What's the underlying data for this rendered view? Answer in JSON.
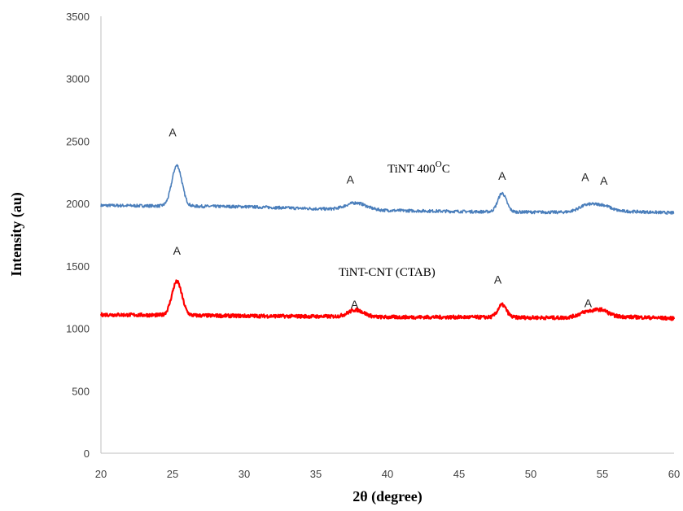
{
  "chart_data": {
    "type": "line",
    "title": "",
    "xlabel": "2θ (degree)",
    "ylabel": "Intensity  (au)",
    "xlim": [
      20,
      60
    ],
    "ylim": [
      0,
      3500
    ],
    "xticks": [
      "20",
      "25",
      "30",
      "35",
      "40",
      "45",
      "50",
      "55",
      "60"
    ],
    "yticks": [
      "0",
      "500",
      "1000",
      "1500",
      "2000",
      "2500",
      "3000",
      "3500"
    ],
    "grid": false,
    "legend": "none",
    "series": [
      {
        "name": "TiNT 400",
        "name_superscript": "O",
        "name_suffix": "C",
        "color": "#4a7ebb",
        "baseline": [
          [
            20,
            1985
          ],
          [
            30,
            1975
          ],
          [
            36,
            1955
          ],
          [
            40,
            1945
          ],
          [
            46,
            1935
          ],
          [
            52,
            1930
          ],
          [
            56,
            1940
          ],
          [
            60,
            1925
          ]
        ],
        "peaks": [
          {
            "x": 25.3,
            "height": 325,
            "width": 0.35
          },
          {
            "x": 37.8,
            "height": 55,
            "width": 0.7
          },
          {
            "x": 48.0,
            "height": 150,
            "width": 0.3
          },
          {
            "x": 54.0,
            "height": 55,
            "width": 0.6
          },
          {
            "x": 55.1,
            "height": 40,
            "width": 0.5
          }
        ],
        "noise": 12
      },
      {
        "name": "TiNT-CNT (CTAB)",
        "color": "#ff0000",
        "baseline": [
          [
            20,
            1110
          ],
          [
            30,
            1100
          ],
          [
            36,
            1095
          ],
          [
            40,
            1090
          ],
          [
            46,
            1090
          ],
          [
            52,
            1085
          ],
          [
            56,
            1095
          ],
          [
            60,
            1080
          ]
        ],
        "peaks": [
          {
            "x": 25.3,
            "height": 270,
            "width": 0.35
          },
          {
            "x": 37.8,
            "height": 55,
            "width": 0.55
          },
          {
            "x": 48.0,
            "height": 100,
            "width": 0.3
          },
          {
            "x": 54.0,
            "height": 45,
            "width": 0.6
          },
          {
            "x": 55.0,
            "height": 45,
            "width": 0.45
          }
        ],
        "noise": 14
      }
    ],
    "annotations": [
      {
        "text": "A",
        "x": 25.0,
        "y": 2540
      },
      {
        "text": "A",
        "x": 37.4,
        "y": 2160
      },
      {
        "text": "A",
        "x": 48.0,
        "y": 2190
      },
      {
        "text": "A",
        "x": 53.8,
        "y": 2180
      },
      {
        "text": "A",
        "x": 55.1,
        "y": 2150
      },
      {
        "text": "A",
        "x": 25.3,
        "y": 1590
      },
      {
        "text": "A",
        "x": 37.7,
        "y": 1160
      },
      {
        "text": "A",
        "x": 47.7,
        "y": 1360
      },
      {
        "text": "A",
        "x": 54.0,
        "y": 1170
      }
    ]
  }
}
